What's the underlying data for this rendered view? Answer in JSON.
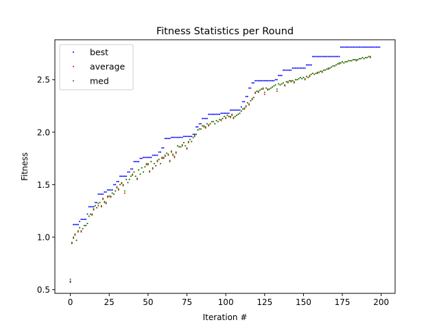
{
  "chart_data": {
    "type": "scatter",
    "title": "Fitness Statistics per Round",
    "xlabel": "Iteration #",
    "ylabel": "Fitness",
    "xlim": [
      -9.95,
      208.95
    ],
    "ylim": [
      0.465,
      2.88
    ],
    "xticks": [
      0,
      25,
      50,
      75,
      100,
      125,
      150,
      175,
      200
    ],
    "xtick_labels": [
      "0",
      "25",
      "50",
      "75",
      "100",
      "125",
      "150",
      "175",
      "200"
    ],
    "yticks": [
      0.5,
      1.0,
      1.5,
      2.0,
      2.5
    ],
    "ytick_labels": [
      "0.5",
      "1.0",
      "1.5",
      "2.0",
      "2.5"
    ],
    "grid": false,
    "legend_position": "top-left",
    "x_start": 0,
    "series": [
      {
        "name": "best",
        "color": "#0000ff",
        "values": [
          0.58,
          0.95,
          1.12,
          1.12,
          1.12,
          1.12,
          1.15,
          1.17,
          1.17,
          1.17,
          1.17,
          1.22,
          1.29,
          1.29,
          1.29,
          1.29,
          1.33,
          1.33,
          1.41,
          1.41,
          1.41,
          1.41,
          1.43,
          1.43,
          1.45,
          1.45,
          1.45,
          1.45,
          1.5,
          1.5,
          1.53,
          1.53,
          1.58,
          1.58,
          1.58,
          1.58,
          1.58,
          1.62,
          1.62,
          1.65,
          1.65,
          1.72,
          1.72,
          1.72,
          1.72,
          1.75,
          1.75,
          1.76,
          1.76,
          1.76,
          1.76,
          1.76,
          1.76,
          1.78,
          1.78,
          1.78,
          1.78,
          1.81,
          1.81,
          1.85,
          1.85,
          1.94,
          1.94,
          1.94,
          1.94,
          1.95,
          1.95,
          1.95,
          1.95,
          1.95,
          1.95,
          1.95,
          1.95,
          1.96,
          1.96,
          1.96,
          1.96,
          1.96,
          1.96,
          1.98,
          1.98,
          2.05,
          2.05,
          2.08,
          2.08,
          2.13,
          2.13,
          2.13,
          2.13,
          2.17,
          2.17,
          2.17,
          2.17,
          2.17,
          2.17,
          2.17,
          2.17,
          2.18,
          2.18,
          2.18,
          2.18,
          2.18,
          2.18,
          2.21,
          2.21,
          2.21,
          2.21,
          2.21,
          2.21,
          2.21,
          2.24,
          2.29,
          2.29,
          2.34,
          2.34,
          2.42,
          2.42,
          2.47,
          2.47,
          2.49,
          2.49,
          2.49,
          2.49,
          2.49,
          2.49,
          2.49,
          2.49,
          2.49,
          2.49,
          2.49,
          2.49,
          2.49,
          2.5,
          2.5,
          2.54,
          2.54,
          2.54,
          2.59,
          2.59,
          2.59,
          2.59,
          2.59,
          2.59,
          2.61,
          2.61,
          2.61,
          2.61,
          2.61,
          2.61,
          2.61,
          2.61,
          2.61,
          2.64,
          2.64,
          2.64,
          2.64,
          2.72,
          2.72,
          2.72,
          2.72,
          2.72,
          2.72,
          2.72,
          2.72,
          2.72,
          2.72,
          2.72,
          2.72,
          2.72,
          2.72,
          2.72,
          2.72,
          2.72,
          2.72,
          2.81,
          2.81,
          2.81,
          2.81,
          2.81,
          2.81,
          2.81,
          2.81,
          2.81,
          2.81,
          2.81,
          2.81,
          2.81,
          2.81,
          2.81,
          2.81,
          2.81,
          2.81,
          2.81,
          2.81,
          2.81,
          2.81,
          2.81,
          2.81,
          2.81,
          2.81
        ]
      },
      {
        "name": "average",
        "color": "#ff0000",
        "values": [
          0.6,
          0.94,
          1.0,
          1.02,
          0.97,
          1.06,
          1.09,
          1.06,
          1.08,
          1.11,
          1.11,
          1.13,
          1.2,
          1.22,
          1.21,
          1.27,
          1.3,
          1.28,
          1.3,
          1.33,
          1.29,
          1.37,
          1.34,
          1.32,
          1.38,
          1.39,
          1.38,
          1.42,
          1.41,
          1.44,
          1.48,
          1.46,
          1.5,
          1.52,
          1.49,
          1.42,
          1.55,
          1.52,
          1.55,
          1.58,
          1.6,
          1.62,
          1.58,
          1.55,
          1.64,
          1.6,
          1.66,
          1.62,
          1.67,
          1.7,
          1.69,
          1.62,
          1.72,
          1.65,
          1.7,
          1.68,
          1.72,
          1.74,
          1.7,
          1.76,
          1.75,
          1.77,
          1.8,
          1.78,
          1.72,
          1.82,
          1.78,
          1.76,
          1.8,
          1.87,
          1.86,
          1.86,
          1.88,
          1.9,
          1.87,
          1.84,
          1.9,
          1.93,
          1.91,
          1.95,
          1.97,
          1.98,
          2.02,
          2.03,
          2.03,
          2.06,
          2.06,
          2.04,
          2.08,
          2.06,
          2.08,
          2.1,
          2.1,
          2.08,
          2.11,
          2.1,
          2.12,
          2.11,
          2.13,
          2.15,
          2.13,
          2.16,
          2.15,
          2.14,
          2.17,
          2.13,
          2.15,
          2.16,
          2.17,
          2.18,
          2.2,
          2.22,
          2.22,
          2.25,
          2.28,
          2.26,
          2.3,
          2.32,
          2.33,
          2.38,
          2.39,
          2.38,
          2.4,
          2.41,
          2.41,
          2.36,
          2.42,
          2.4,
          2.41,
          2.42,
          2.43,
          2.44,
          2.45,
          2.39,
          2.46,
          2.45,
          2.46,
          2.47,
          2.44,
          2.48,
          2.47,
          2.49,
          2.48,
          2.49,
          2.47,
          2.5,
          2.5,
          2.51,
          2.52,
          2.51,
          2.52,
          2.5,
          2.53,
          2.52,
          2.53,
          2.55,
          2.56,
          2.55,
          2.56,
          2.56,
          2.57,
          2.58,
          2.57,
          2.59,
          2.59,
          2.6,
          2.6,
          2.61,
          2.62,
          2.63,
          2.63,
          2.64,
          2.65,
          2.65,
          2.66,
          2.67,
          2.66,
          2.67,
          2.67,
          2.68,
          2.68,
          2.68,
          2.69,
          2.69,
          2.68,
          2.69,
          2.7,
          2.7,
          2.71,
          2.7,
          2.71,
          2.71,
          2.72,
          2.72
        ]
      },
      {
        "name": "med",
        "color": "#008000",
        "values": [
          0.57,
          0.95,
          0.99,
          1.03,
          0.97,
          1.05,
          1.09,
          1.05,
          1.08,
          1.11,
          1.11,
          1.13,
          1.2,
          1.22,
          1.22,
          1.26,
          1.3,
          1.28,
          1.32,
          1.33,
          1.3,
          1.36,
          1.33,
          1.33,
          1.39,
          1.39,
          1.39,
          1.42,
          1.41,
          1.44,
          1.47,
          1.45,
          1.5,
          1.51,
          1.5,
          1.44,
          1.55,
          1.52,
          1.55,
          1.58,
          1.59,
          1.62,
          1.58,
          1.56,
          1.64,
          1.6,
          1.66,
          1.62,
          1.67,
          1.69,
          1.7,
          1.63,
          1.72,
          1.66,
          1.7,
          1.68,
          1.73,
          1.74,
          1.7,
          1.75,
          1.76,
          1.78,
          1.8,
          1.79,
          1.73,
          1.81,
          1.79,
          1.77,
          1.81,
          1.87,
          1.86,
          1.86,
          1.87,
          1.9,
          1.87,
          1.85,
          1.91,
          1.93,
          1.91,
          1.95,
          1.96,
          1.98,
          2.02,
          2.03,
          2.03,
          2.06,
          2.05,
          2.05,
          2.08,
          2.07,
          2.08,
          2.1,
          2.1,
          2.08,
          2.11,
          2.1,
          2.12,
          2.12,
          2.13,
          2.15,
          2.14,
          2.16,
          2.15,
          2.15,
          2.16,
          2.14,
          2.15,
          2.16,
          2.17,
          2.18,
          2.2,
          2.22,
          2.23,
          2.24,
          2.28,
          2.27,
          2.3,
          2.31,
          2.33,
          2.37,
          2.39,
          2.39,
          2.4,
          2.41,
          2.42,
          2.38,
          2.42,
          2.41,
          2.41,
          2.42,
          2.43,
          2.44,
          2.45,
          2.41,
          2.46,
          2.45,
          2.46,
          2.47,
          2.45,
          2.48,
          2.48,
          2.49,
          2.49,
          2.49,
          2.48,
          2.5,
          2.5,
          2.51,
          2.52,
          2.51,
          2.52,
          2.51,
          2.53,
          2.52,
          2.54,
          2.55,
          2.56,
          2.55,
          2.56,
          2.57,
          2.57,
          2.58,
          2.58,
          2.59,
          2.59,
          2.6,
          2.61,
          2.61,
          2.62,
          2.63,
          2.63,
          2.64,
          2.65,
          2.66,
          2.66,
          2.67,
          2.66,
          2.67,
          2.67,
          2.68,
          2.68,
          2.68,
          2.69,
          2.69,
          2.69,
          2.69,
          2.7,
          2.7,
          2.71,
          2.7,
          2.71,
          2.71,
          2.72,
          2.71
        ]
      }
    ]
  }
}
